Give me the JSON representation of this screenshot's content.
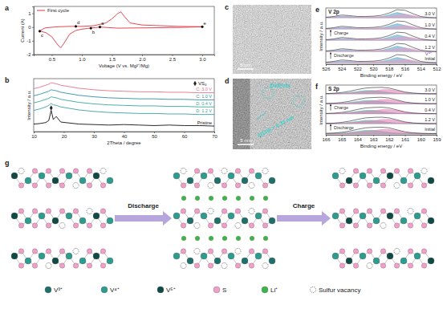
{
  "chart_data": [
    {
      "type": "line",
      "label": "a",
      "x_label": "Voltage (V vs. Mg²⁺/Mg)",
      "y_label": "Current (A)",
      "legend": "top-left",
      "xlim": [
        0.2,
        3.2
      ],
      "xticks": [
        0.5,
        {
          "value": 1,
          "label": "1.0"
        },
        1.5,
        {
          "value": 2,
          "label": "2.0"
        },
        2.5,
        {
          "value": 3,
          "label": "3.0"
        }
      ],
      "ylim": [
        -2,
        1.5
      ],
      "yticks": [
        -2,
        -1,
        0,
        1
      ],
      "series": [
        {
          "name": "First cycle",
          "color": "#e2343f",
          "x": [
            1.3,
            1.2,
            1.1,
            1.0,
            0.9,
            0.8,
            0.7,
            0.65,
            0.6,
            0.5,
            0.4,
            0.3,
            0.35,
            0.4,
            0.6,
            0.8,
            1.0,
            1.2,
            1.4,
            1.5,
            1.6,
            1.65,
            1.7,
            1.8,
            2.0,
            2.3,
            2.6,
            3.0,
            2.6,
            2.0,
            1.6,
            1.3
          ],
          "values": [
            0,
            -0.05,
            -0.1,
            -0.15,
            -0.25,
            -0.5,
            -1.2,
            -1.5,
            -1.3,
            -0.7,
            -0.4,
            -0.3,
            -0.15,
            -0.05,
            0.02,
            0.05,
            0.05,
            0.1,
            0.3,
            0.6,
            1.0,
            1.1,
            0.8,
            0.3,
            0.15,
            0.1,
            0.05,
            0.02,
            -0.03,
            -0.06,
            -0.08,
            0
          ]
        }
      ],
      "annotations": [
        {
          "text": "a",
          "x": 1.3,
          "y": 0
        },
        {
          "text": "b",
          "x": 1.15,
          "y": -0.08
        },
        {
          "text": "c",
          "x": 0.3,
          "y": -0.3
        },
        {
          "text": "d",
          "x": 0.9,
          "y": 0.05
        },
        {
          "text": "e",
          "x": 3.0,
          "y": 0.02
        }
      ]
    },
    {
      "type": "line",
      "label": "b",
      "x_label": "2Theta / degree",
      "y_label": "Intensity / a.u.",
      "tick_labels": "x",
      "xlim": [
        10,
        70
      ],
      "xticks": [
        10,
        20,
        30,
        40,
        50,
        60,
        70
      ],
      "ylim": [
        0,
        10.5
      ],
      "x": [
        10,
        12,
        14,
        15,
        15.8,
        16.5,
        17.5,
        19,
        22,
        25,
        30,
        35,
        40,
        45,
        50,
        55,
        60,
        65,
        70
      ],
      "series": [
        {
          "name": "C: 3.0 V",
          "color": "#e8708a",
          "values": [
            8.5,
            8.8,
            9.2,
            9.4,
            9.7,
            9.6,
            9.5,
            9.2,
            8.9,
            8.6,
            8.3,
            8.1,
            8.0,
            7.9,
            7.9,
            7.8,
            7.8,
            7.7,
            7.7
          ]
        },
        {
          "name": "C: 1.0 V",
          "color": "#2f8fa8",
          "values": [
            7.1,
            7.4,
            7.8,
            8.0,
            8.3,
            8.2,
            8.1,
            7.8,
            7.5,
            7.2,
            6.9,
            6.7,
            6.6,
            6.5,
            6.5,
            6.4,
            6.4,
            6.3,
            6.3
          ]
        },
        {
          "name": "D: 0.4 V",
          "color": "#3aa89a",
          "values": [
            5.7,
            6.0,
            6.4,
            6.6,
            6.9,
            6.8,
            6.7,
            6.4,
            6.1,
            5.8,
            5.5,
            5.3,
            5.2,
            5.1,
            5.1,
            5.0,
            5.0,
            4.9,
            4.9
          ]
        },
        {
          "name": "D: 1.2 V",
          "color": "#3a9fa6",
          "values": [
            4.2,
            4.5,
            4.9,
            5.2,
            5.6,
            5.3,
            5.2,
            4.9,
            4.6,
            4.3,
            4.0,
            3.8,
            3.7,
            3.6,
            3.6,
            3.5,
            3.5,
            3.4,
            3.4
          ]
        },
        {
          "name": "Pristine",
          "color": "#111111",
          "values": [
            1.5,
            1.6,
            1.8,
            2.2,
            4.2,
            2.4,
            3.0,
            1.9,
            1.7,
            1.5,
            1.4,
            1.3,
            1.4,
            1.3,
            1.2,
            1.3,
            1.2,
            1.2,
            1.1
          ]
        }
      ],
      "markers": [
        {
          "x": 15.8,
          "y": 4.7
        }
      ],
      "annotations": [
        {
          "text": "VS₄"
        }
      ]
    },
    {
      "type": "xps",
      "label": "e",
      "title": "V 2p",
      "x_label": "Binding energy / eV",
      "y_label": "Intensity / a.u.",
      "tick_labels": "x",
      "xlim": [
        526,
        512
      ],
      "xticks": [
        526,
        524,
        522,
        520,
        518,
        516,
        514,
        512
      ],
      "ylim": [
        0,
        10
      ],
      "x": [
        526,
        525,
        524,
        523,
        522,
        521,
        520,
        519,
        518,
        517,
        516,
        515,
        514,
        513,
        512
      ],
      "arrows": [
        "Charge",
        "Discharge"
      ],
      "peak_label": {
        "text": "V⁴⁺",
        "x": 513,
        "y": 1.6
      },
      "spectra": [
        {
          "label": "3.0 V",
          "envelope": [
            8.35,
            8.5,
            8.75,
            8.65,
            8.5,
            8.5,
            8.55,
            8.7,
            9.1,
            9.7,
            9.6,
            9.0,
            8.5,
            8.32,
            8.25
          ],
          "components": [
            {
              "color": "#4fa3c7",
              "values": [
                8.3,
                8.4,
                8.55,
                8.5,
                8.35,
                8.3,
                8.3,
                8.45,
                8.8,
                9.2,
                8.9,
                8.5,
                8.3,
                8.25,
                8.25
              ]
            },
            {
              "color": "#e79ac0",
              "values": [
                8.25,
                8.3,
                8.4,
                8.35,
                8.35,
                8.4,
                8.45,
                8.45,
                8.5,
                8.7,
                8.9,
                8.7,
                8.4,
                8.27,
                8.25
              ]
            }
          ]
        },
        {
          "label": "1.0 V",
          "envelope": [
            6.35,
            6.5,
            6.75,
            6.65,
            6.5,
            6.5,
            6.55,
            6.7,
            7.1,
            7.7,
            7.6,
            7.0,
            6.5,
            6.32,
            6.25
          ],
          "components": [
            {
              "color": "#4fa3c7",
              "values": [
                6.3,
                6.4,
                6.55,
                6.5,
                6.35,
                6.3,
                6.3,
                6.45,
                6.8,
                7.2,
                6.9,
                6.5,
                6.3,
                6.25,
                6.25
              ]
            },
            {
              "color": "#e79ac0",
              "values": [
                6.25,
                6.3,
                6.4,
                6.35,
                6.35,
                6.4,
                6.45,
                6.45,
                6.5,
                6.7,
                6.9,
                6.7,
                6.4,
                6.27,
                6.25
              ]
            }
          ]
        },
        {
          "label": "0.4 V",
          "envelope": [
            4.35,
            4.5,
            4.75,
            4.65,
            4.5,
            4.5,
            4.55,
            4.7,
            5.1,
            5.7,
            5.6,
            5.0,
            4.5,
            4.32,
            4.25
          ],
          "components": [
            {
              "color": "#4fa3c7",
              "values": [
                4.3,
                4.4,
                4.55,
                4.5,
                4.35,
                4.3,
                4.3,
                4.45,
                4.8,
                5.2,
                4.9,
                4.5,
                4.3,
                4.25,
                4.25
              ]
            },
            {
              "color": "#e79ac0",
              "values": [
                4.25,
                4.3,
                4.4,
                4.35,
                4.35,
                4.4,
                4.45,
                4.45,
                4.5,
                4.7,
                4.9,
                4.7,
                4.4,
                4.27,
                4.25
              ]
            }
          ]
        },
        {
          "label": "1.2 V",
          "envelope": [
            2.35,
            2.5,
            2.75,
            2.65,
            2.5,
            2.5,
            2.55,
            2.7,
            3.1,
            3.7,
            3.6,
            3.0,
            2.5,
            2.32,
            2.25
          ],
          "components": [
            {
              "color": "#4fa3c7",
              "values": [
                2.3,
                2.4,
                2.55,
                2.5,
                2.35,
                2.3,
                2.3,
                2.45,
                2.8,
                3.2,
                2.9,
                2.5,
                2.3,
                2.25,
                2.25
              ]
            },
            {
              "color": "#e79ac0",
              "values": [
                2.25,
                2.3,
                2.4,
                2.35,
                2.35,
                2.4,
                2.45,
                2.45,
                2.5,
                2.7,
                2.9,
                2.7,
                2.4,
                2.27,
                2.25
              ]
            }
          ]
        },
        {
          "label": "Initial",
          "envelope": [
            0.35,
            0.5,
            0.75,
            0.65,
            0.5,
            0.5,
            0.55,
            0.7,
            1.1,
            1.7,
            1.6,
            1.0,
            0.5,
            0.32,
            0.25
          ],
          "components": [
            {
              "color": "#4fa3c7",
              "values": [
                0.3,
                0.4,
                0.55,
                0.5,
                0.35,
                0.3,
                0.3,
                0.45,
                0.8,
                1.2,
                0.9,
                0.5,
                0.3,
                0.25,
                0.25
              ]
            },
            {
              "color": "#e79ac0",
              "values": [
                0.25,
                0.3,
                0.4,
                0.35,
                0.35,
                0.4,
                0.45,
                0.45,
                0.5,
                0.7,
                0.9,
                0.7,
                0.4,
                0.27,
                0.25
              ]
            }
          ]
        }
      ]
    },
    {
      "type": "xps",
      "label": "f",
      "title": "S 2p",
      "x_label": "Binding energy / eV",
      "y_label": "Intensity / a.u.",
      "tick_labels": "x",
      "xlim": [
        166,
        159
      ],
      "xticks": [
        166,
        165,
        164,
        163,
        162,
        161,
        160,
        159
      ],
      "ylim": [
        0,
        10
      ],
      "x": [
        166,
        165.5,
        165,
        164.5,
        164,
        163.5,
        163,
        162.5,
        162,
        161.5,
        161,
        160.5,
        160,
        159.5,
        159
      ],
      "arrows": [
        "Charge",
        "Discharge"
      ],
      "spectra": [
        {
          "label": "3.0 V",
          "envelope": [
            8.3,
            8.35,
            8.5,
            8.75,
            9.1,
            9.4,
            9.5,
            9.55,
            9.4,
            9.0,
            8.6,
            8.4,
            8.3,
            8.25,
            8.25
          ],
          "components": [
            {
              "color": "#3fb3a6",
              "values": [
                8.25,
                8.3,
                8.35,
                8.5,
                8.7,
                8.9,
                8.9,
                8.7,
                8.5,
                8.35,
                8.27,
                8.25,
                8.25,
                8.25,
                8.25
              ]
            },
            {
              "color": "#e27ab0",
              "values": [
                8.25,
                8.25,
                8.3,
                8.4,
                8.55,
                8.7,
                8.8,
                9.05,
                9.1,
                8.85,
                8.5,
                8.35,
                8.27,
                8.25,
                8.25
              ]
            }
          ]
        },
        {
          "label": "1.0 V",
          "envelope": [
            6.3,
            6.35,
            6.5,
            6.75,
            7.1,
            7.4,
            7.5,
            7.55,
            7.4,
            7.0,
            6.6,
            6.4,
            6.3,
            6.25,
            6.25
          ],
          "components": [
            {
              "color": "#3fb3a6",
              "values": [
                6.25,
                6.3,
                6.35,
                6.5,
                6.7,
                6.9,
                6.9,
                6.7,
                6.5,
                6.35,
                6.27,
                6.25,
                6.25,
                6.25,
                6.25
              ]
            },
            {
              "color": "#e27ab0",
              "values": [
                6.25,
                6.25,
                6.3,
                6.4,
                6.55,
                6.7,
                6.8,
                7.05,
                7.1,
                6.85,
                6.5,
                6.35,
                6.27,
                6.25,
                6.25
              ]
            }
          ]
        },
        {
          "label": "0.4 V",
          "envelope": [
            4.3,
            4.35,
            4.5,
            4.75,
            5.1,
            5.4,
            5.5,
            5.55,
            5.4,
            5.0,
            4.6,
            4.4,
            4.3,
            4.25,
            4.25
          ],
          "components": [
            {
              "color": "#3fb3a6",
              "values": [
                4.25,
                4.3,
                4.35,
                4.5,
                4.7,
                4.9,
                4.9,
                4.7,
                4.5,
                4.35,
                4.27,
                4.25,
                4.25,
                4.25,
                4.25
              ]
            },
            {
              "color": "#e27ab0",
              "values": [
                4.25,
                4.25,
                4.3,
                4.4,
                4.55,
                4.7,
                4.8,
                5.05,
                5.1,
                4.85,
                4.5,
                4.35,
                4.27,
                4.25,
                4.25
              ]
            }
          ]
        },
        {
          "label": "1.2 V",
          "envelope": [
            2.3,
            2.35,
            2.5,
            2.75,
            3.1,
            3.4,
            3.5,
            3.55,
            3.4,
            3.0,
            2.6,
            2.4,
            2.3,
            2.25,
            2.25
          ],
          "components": [
            {
              "color": "#3fb3a6",
              "values": [
                2.25,
                2.3,
                2.35,
                2.5,
                2.7,
                2.9,
                2.9,
                2.7,
                2.5,
                2.35,
                2.27,
                2.25,
                2.25,
                2.25,
                2.25
              ]
            },
            {
              "color": "#e27ab0",
              "values": [
                2.25,
                2.25,
                2.3,
                2.4,
                2.55,
                2.7,
                2.8,
                3.05,
                3.1,
                2.85,
                2.5,
                2.35,
                2.27,
                2.25,
                2.25
              ]
            }
          ]
        },
        {
          "label": "Initial",
          "envelope": [
            0.3,
            0.35,
            0.5,
            0.75,
            1.1,
            1.4,
            1.5,
            1.55,
            1.4,
            1.0,
            0.6,
            0.4,
            0.3,
            0.25,
            0.25
          ],
          "components": [
            {
              "color": "#3fb3a6",
              "values": [
                0.25,
                0.3,
                0.35,
                0.5,
                0.7,
                0.9,
                0.9,
                0.7,
                0.5,
                0.35,
                0.27,
                0.25,
                0.25,
                0.25,
                0.25
              ]
            },
            {
              "color": "#e27ab0",
              "values": [
                0.25,
                0.25,
                0.3,
                0.4,
                0.55,
                0.7,
                0.8,
                1.05,
                1.1,
                0.85,
                0.5,
                0.35,
                0.27,
                0.25,
                0.25
              ]
            }
          ]
        }
      ]
    }
  ],
  "images": [
    {
      "label": "c",
      "scale_bar": "5 nm"
    },
    {
      "label": "d",
      "scale_bar": "5 nm",
      "annotations": [
        "Defects",
        "d(110) = 0.32 nm"
      ]
    }
  ],
  "diagram": {
    "label": "g",
    "steps": [
      "Discharge",
      "Charge"
    ],
    "legend": [
      {
        "text": "V³⁺",
        "color": "#1f6f6a"
      },
      {
        "text": "V⁴⁺",
        "color": "#2e9b8f"
      },
      {
        "text": "V⁵⁺",
        "color": "#0f4a45"
      },
      {
        "text": "S",
        "color": "#f0a0c8"
      },
      {
        "text": "Li⁺",
        "color": "#39b54a"
      },
      {
        "text": "Sulfur vacancy"
      }
    ]
  }
}
